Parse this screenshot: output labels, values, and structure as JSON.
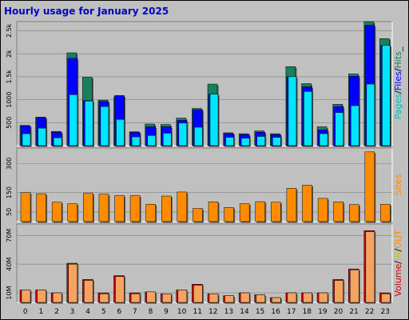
{
  "title": "Hourly usage for January 2025",
  "colors": {
    "background": "#c0c0c0",
    "plot_background": "#c0c0c0",
    "hits": "#1a7f5f",
    "files": "#0000ff",
    "pages": "#00e5ff",
    "sites": "#ff8c00",
    "volume": "#cc0000",
    "kb_in": "#e0e000",
    "kb_out": "#ff8c00",
    "legend_pages": "#00c0c0",
    "legend_files": "#0000ff",
    "legend_hits": "#1a7f5f",
    "legend_sites": "#ff8c00",
    "legend_volume": "#cc0000",
    "legend_in": "#c8c800",
    "legend_out": "#ff8c00"
  },
  "chart_data": [
    {
      "type": "bar",
      "panel": "hits-files-pages",
      "categories": [
        "0",
        "1",
        "2",
        "3",
        "4",
        "5",
        "6",
        "7",
        "8",
        "9",
        "10",
        "11",
        "12",
        "13",
        "14",
        "15",
        "16",
        "17",
        "18",
        "19",
        "20",
        "21",
        "22",
        "23"
      ],
      "ylim": [
        0,
        2700
      ],
      "y_ticks": [
        500,
        1000,
        1500,
        2000,
        2500
      ],
      "y_tick_labels": [
        "500",
        "1000",
        "1.5k",
        "2k",
        "2.5k"
      ],
      "legend": [
        "Pages",
        "/",
        "Files",
        "/",
        "Hits",
        "_"
      ],
      "series": [
        {
          "name": "Hits",
          "values": [
            440,
            620,
            310,
            2020,
            1490,
            990,
            1060,
            300,
            470,
            460,
            600,
            810,
            1340,
            280,
            260,
            320,
            260,
            1720,
            1350,
            410,
            900,
            1560,
            2700,
            2330
          ]
        },
        {
          "name": "Files",
          "values": [
            430,
            610,
            290,
            1900,
            980,
            960,
            1090,
            290,
            410,
            410,
            550,
            780,
            1120,
            260,
            240,
            290,
            240,
            1500,
            1280,
            340,
            850,
            1510,
            2620,
            2180
          ]
        },
        {
          "name": "Pages",
          "values": [
            260,
            380,
            170,
            1110,
            970,
            850,
            570,
            190,
            220,
            270,
            490,
            400,
            1120,
            180,
            160,
            200,
            180,
            1500,
            1180,
            260,
            720,
            870,
            1340,
            2180
          ]
        }
      ]
    },
    {
      "type": "bar",
      "panel": "sites",
      "categories": [
        "0",
        "1",
        "2",
        "3",
        "4",
        "5",
        "6",
        "7",
        "8",
        "9",
        "10",
        "11",
        "12",
        "13",
        "14",
        "15",
        "16",
        "17",
        "18",
        "19",
        "20",
        "21",
        "22",
        "23"
      ],
      "ylim": [
        0,
        380
      ],
      "y_ticks": [
        50,
        150,
        300
      ],
      "y_tick_labels": [
        "50",
        "150",
        "300"
      ],
      "legend": [
        "Sites"
      ],
      "series": [
        {
          "name": "Sites",
          "values": [
            150,
            144,
            100,
            92,
            146,
            142,
            134,
            134,
            90,
            132,
            153,
            68,
            102,
            73,
            92,
            103,
            100,
            172,
            188,
            120,
            102,
            88,
            360,
            90
          ]
        }
      ]
    },
    {
      "type": "bar",
      "panel": "volume",
      "categories": [
        "0",
        "1",
        "2",
        "3",
        "4",
        "5",
        "6",
        "7",
        "8",
        "9",
        "10",
        "11",
        "12",
        "13",
        "14",
        "15",
        "16",
        "17",
        "18",
        "19",
        "20",
        "21",
        "22",
        "23"
      ],
      "ylim": [
        0,
        82
      ],
      "y_ticks": [
        10,
        40,
        70
      ],
      "y_tick_labels": [
        "10M",
        "40M",
        "70M"
      ],
      "legend": [
        "Volume",
        "/",
        "IN",
        "/",
        "OUT",
        "/",
        "Sites"
      ],
      "series": [
        {
          "name": "Volume",
          "values": [
            13,
            13,
            10,
            41,
            24,
            10,
            28,
            10,
            11,
            9,
            13,
            19,
            9,
            7,
            10,
            8,
            5,
            10,
            10,
            10,
            24,
            35,
            75,
            10
          ]
        },
        {
          "name": "OUT",
          "values": [
            13,
            13,
            10,
            40,
            23,
            9,
            27,
            9,
            11,
            9,
            13,
            18,
            9,
            7,
            10,
            8,
            5,
            10,
            10,
            10,
            23,
            34,
            74,
            9
          ]
        }
      ]
    }
  ],
  "legends": {
    "top": [
      {
        "text": "Pages",
        "color": "#00c0c0"
      },
      {
        "text": "/",
        "color": "#000000"
      },
      {
        "text": "Files",
        "color": "#0000ff"
      },
      {
        "text": "/",
        "color": "#000000"
      },
      {
        "text": "Hits",
        "color": "#1a7f5f"
      },
      {
        "text": "_",
        "color": "#000000"
      }
    ],
    "middle": [
      {
        "text": "Sites",
        "color": "#ff8c00"
      }
    ],
    "bottom": [
      {
        "text": "Volume",
        "color": "#cc0000"
      },
      {
        "text": "/",
        "color": "#000000"
      },
      {
        "text": "IN",
        "color": "#c8c800"
      },
      {
        "text": "/",
        "color": "#000000"
      },
      {
        "text": "OUT",
        "color": "#ff8c00"
      }
    ]
  }
}
